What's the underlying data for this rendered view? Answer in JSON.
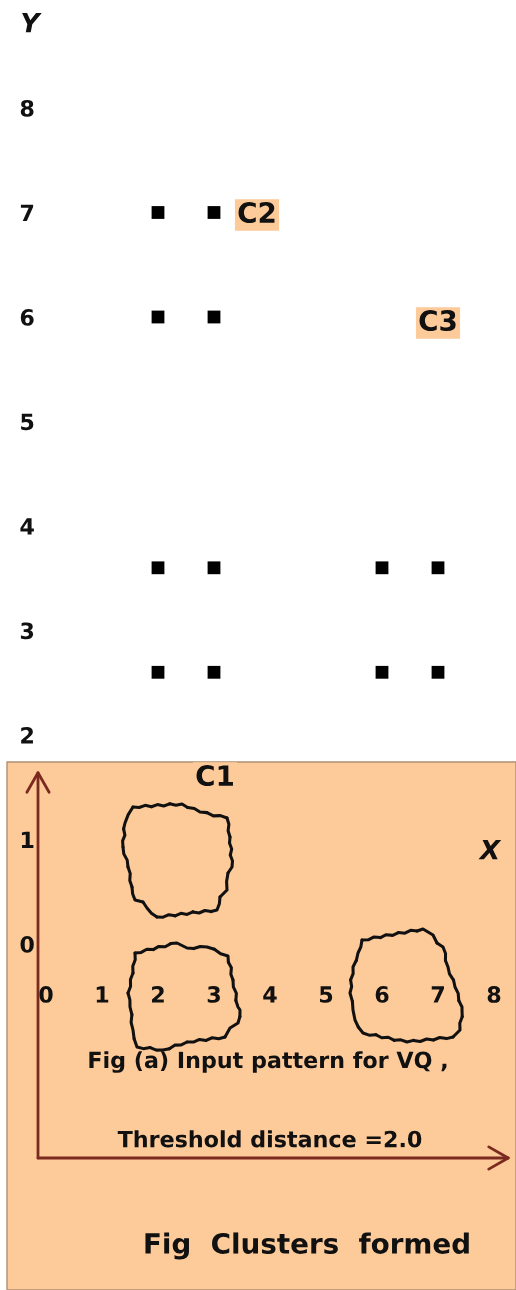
{
  "chart_data": {
    "type": "scatter",
    "xlabel": "X",
    "ylabel": "Y",
    "x": [
      2,
      3,
      2,
      3,
      2,
      3,
      6,
      7,
      2,
      3,
      6,
      7
    ],
    "values": [
      7,
      7,
      6,
      6,
      3.6,
      3.6,
      3.6,
      3.6,
      2.6,
      2.6,
      2.6,
      2.6
    ],
    "color": "#000000",
    "marker": "square",
    "xlim": [
      0,
      8
    ],
    "ylim": [
      0,
      8
    ],
    "xticks": [
      0,
      1,
      2,
      3,
      4,
      5,
      6,
      7,
      8
    ],
    "yticks": [
      0,
      1,
      2,
      3,
      4,
      5,
      6,
      7,
      8
    ],
    "annotations": [
      "C2",
      "C3",
      "C1",
      "Fig (a) Input pattern for VQ ,",
      "Threshold distance =2.0",
      "Fig  Clusters  formed"
    ]
  }
}
